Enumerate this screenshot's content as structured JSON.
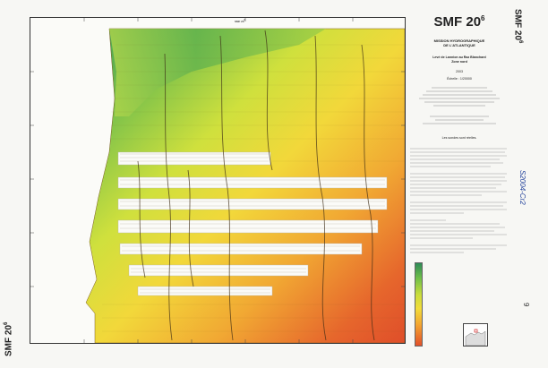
{
  "sheet": {
    "code_main": "SMF 20",
    "code_sup": "6",
    "map_header": "SMF 20",
    "map_header_sup": "6",
    "side_label": "SMF 20",
    "side_label_sup": "6"
  },
  "title_block": {
    "heading_1": "MISSION HYDROGRAPHIQUE",
    "heading_2": "DE L'ATLANTIQUE",
    "survey_1": "Levé de Lannion au Raz Blanchard",
    "survey_2": "Zone nord",
    "year": "2003",
    "scale": "Échelle : 1/20000",
    "note_1": "Les sondes sont réelles."
  },
  "margin": {
    "handwritten_note": "S2004-Cr2",
    "page_number": "9"
  },
  "colors": {
    "shallow": "#2e8b57",
    "mid_green": "#6fbf4a",
    "yellow_green": "#c9dd3c",
    "yellow": "#f2dc3a",
    "orange": "#f3a430",
    "deep": "#e2502a"
  },
  "icons": [
    "north-arrow-icon",
    "inset-locator-map-icon"
  ]
}
